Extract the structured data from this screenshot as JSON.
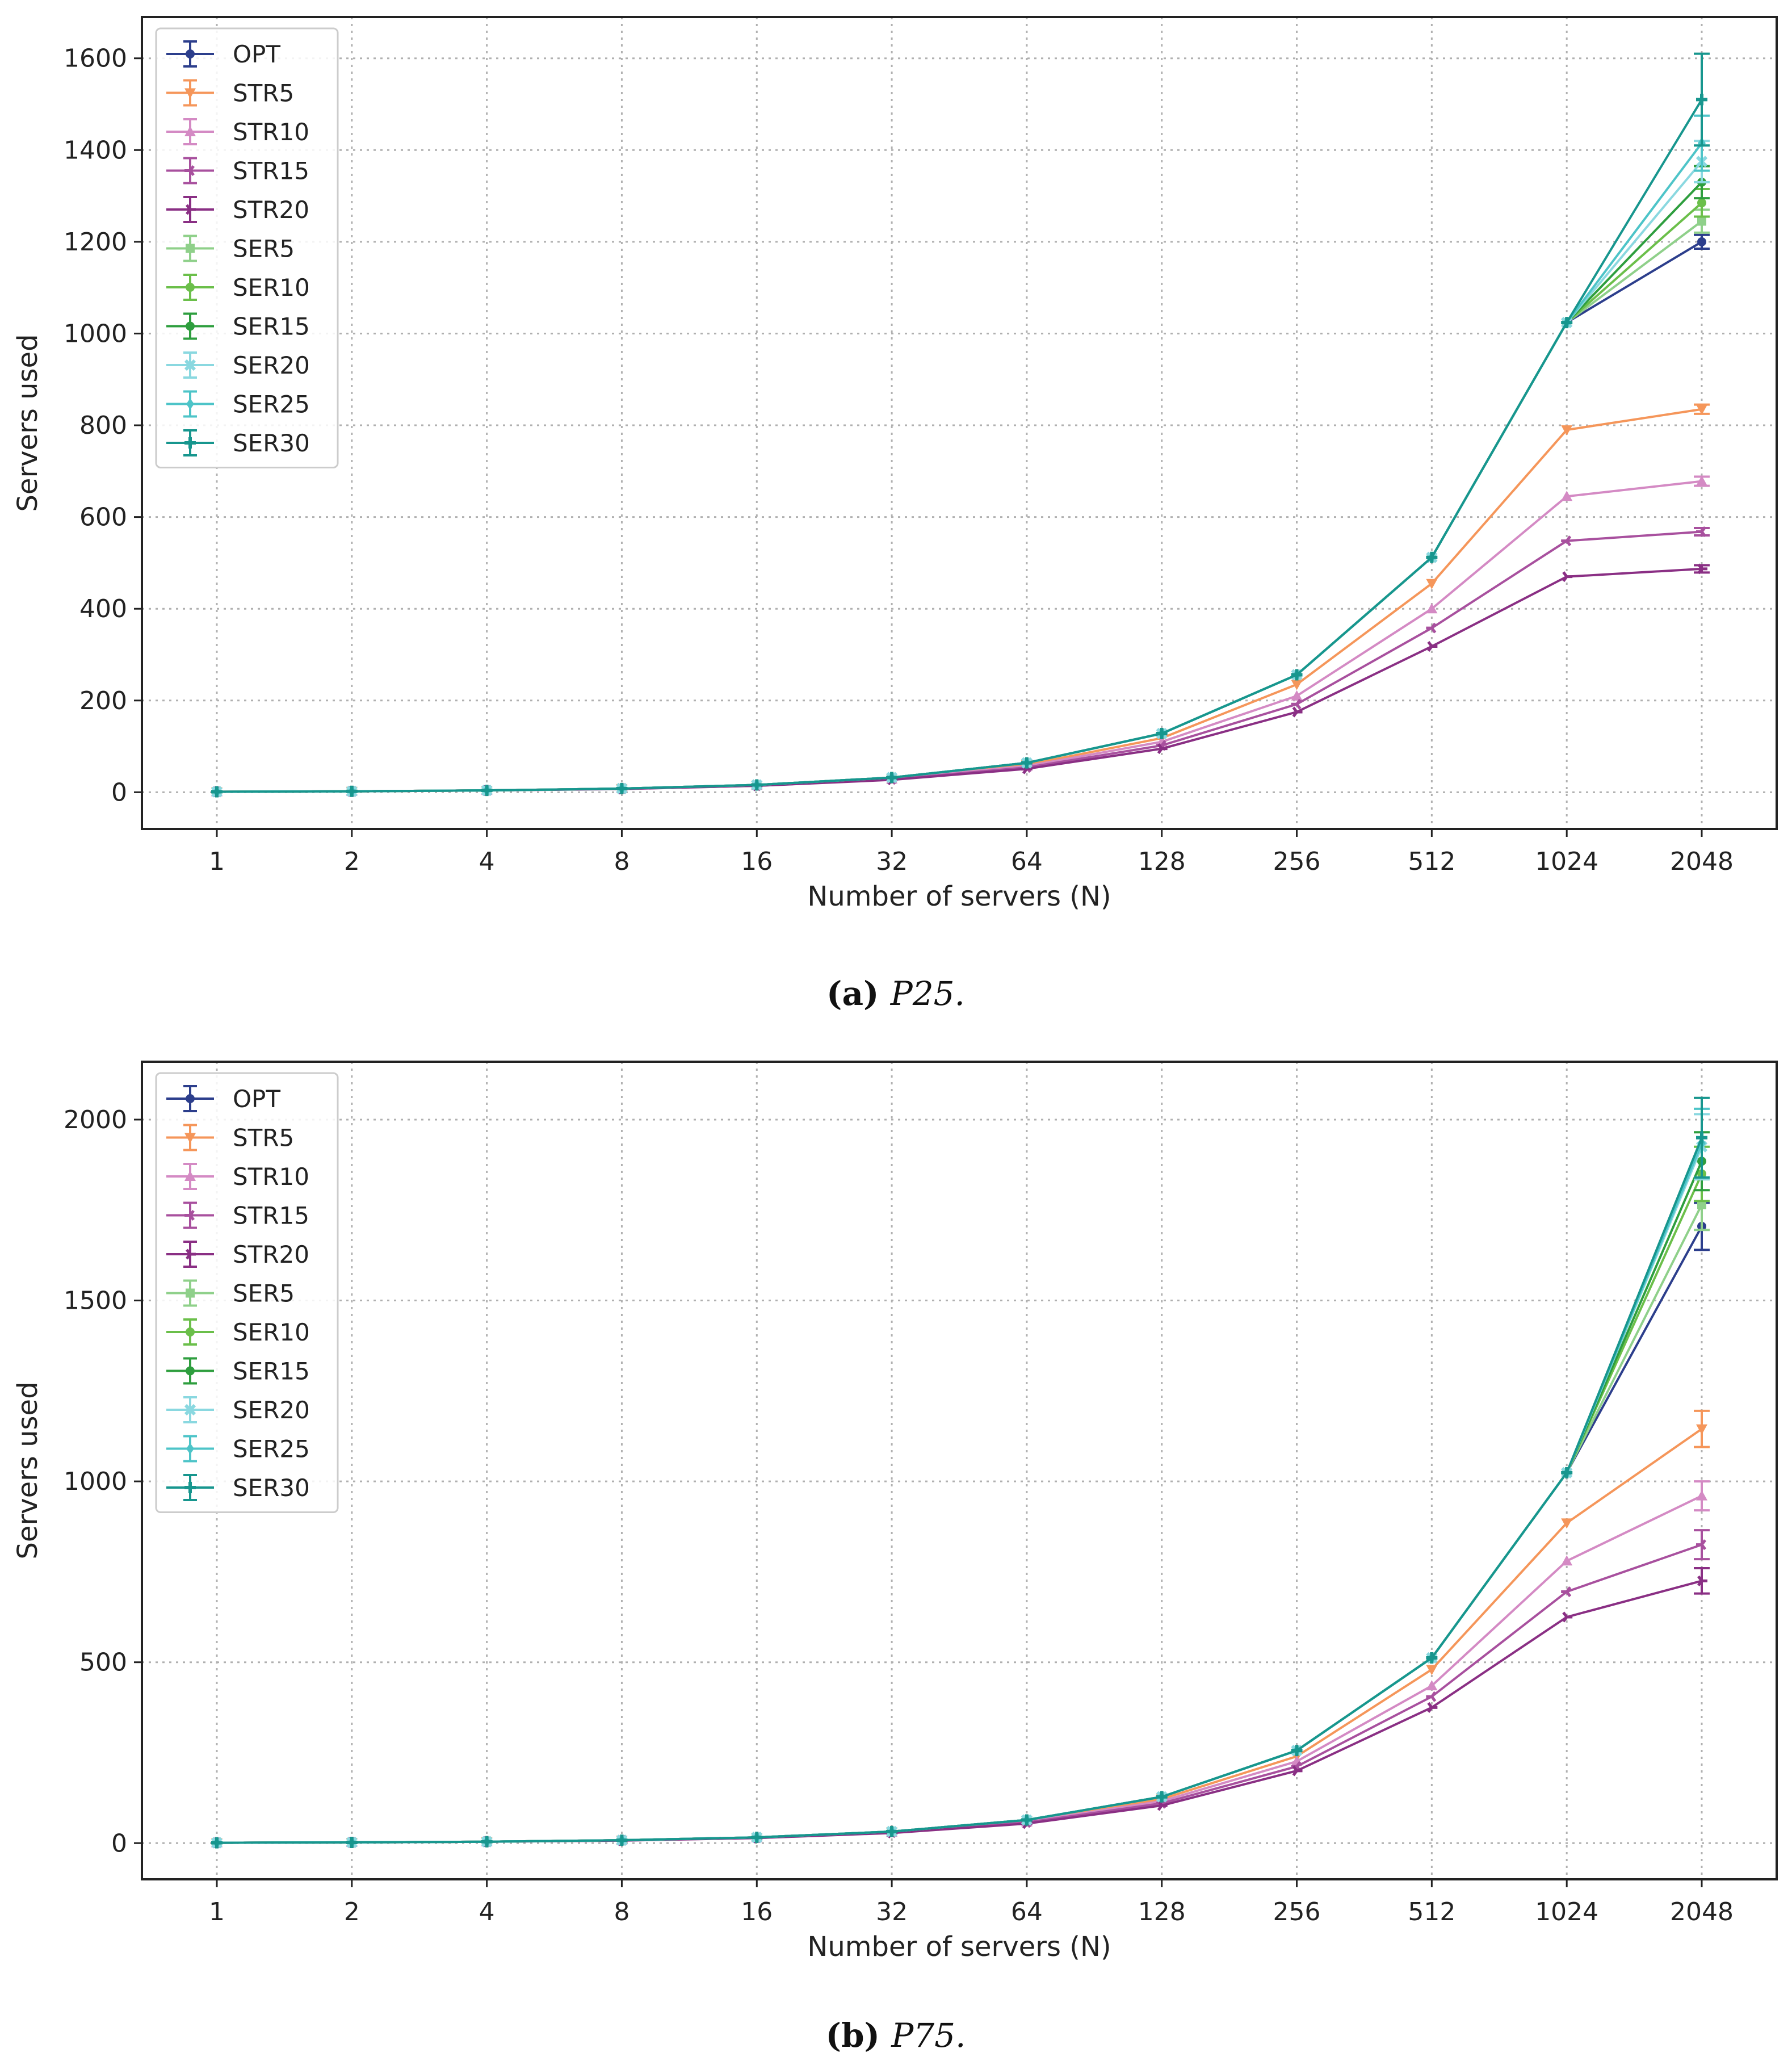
{
  "chart_data": [
    {
      "type": "line",
      "caption_tag": "(a)",
      "caption_text": "P25.",
      "xlabel": "Number of servers (N)",
      "ylabel": "Servers used",
      "categories": [
        "1",
        "2",
        "4",
        "8",
        "16",
        "32",
        "64",
        "128",
        "256",
        "512",
        "1024",
        "2048"
      ],
      "yticks": [
        0,
        200,
        400,
        600,
        800,
        1000,
        1200,
        1400,
        1600
      ],
      "ylim": [
        -80,
        1690
      ],
      "grid": true,
      "legend_position": "top-left",
      "series": [
        {
          "name": "OPT",
          "color": "#2c3e8c",
          "marker": "circle",
          "values": [
            1,
            2,
            4,
            8,
            16,
            32,
            64,
            128,
            256,
            512,
            1024,
            1200
          ],
          "err_last": 15
        },
        {
          "name": "STR5",
          "color": "#f5965a",
          "marker": "triangle-down",
          "values": [
            1,
            2,
            4,
            8,
            15,
            30,
            60,
            118,
            235,
            455,
            790,
            835
          ],
          "err_last": 10
        },
        {
          "name": "STR10",
          "color": "#d48ac4",
          "marker": "triangle-up",
          "values": [
            1,
            2,
            4,
            8,
            15,
            29,
            57,
            110,
            210,
            400,
            645,
            678
          ],
          "err_last": 10
        },
        {
          "name": "STR15",
          "color": "#a8509e",
          "marker": "tri-left",
          "values": [
            1,
            2,
            4,
            8,
            14,
            28,
            54,
            102,
            192,
            358,
            548,
            568
          ],
          "err_last": 8
        },
        {
          "name": "STR20",
          "color": "#8a2f84",
          "marker": "tri-right",
          "values": [
            1,
            2,
            4,
            7,
            14,
            27,
            51,
            95,
            175,
            318,
            470,
            487
          ],
          "err_last": 8
        },
        {
          "name": "SER5",
          "color": "#8fd08a",
          "marker": "square",
          "values": [
            1,
            2,
            4,
            8,
            16,
            32,
            64,
            128,
            256,
            512,
            1024,
            1245
          ],
          "err_last": 25
        },
        {
          "name": "SER10",
          "color": "#6bbf4a",
          "marker": "circle",
          "values": [
            1,
            2,
            4,
            8,
            16,
            32,
            64,
            128,
            256,
            512,
            1024,
            1285
          ],
          "err_last": 30
        },
        {
          "name": "SER15",
          "color": "#2e9e3e",
          "marker": "circle",
          "values": [
            1,
            2,
            4,
            8,
            16,
            32,
            64,
            128,
            256,
            512,
            1024,
            1330
          ],
          "err_last": 35
        },
        {
          "name": "SER20",
          "color": "#8ad8e0",
          "marker": "x",
          "values": [
            1,
            2,
            4,
            8,
            16,
            32,
            64,
            128,
            256,
            512,
            1024,
            1375
          ],
          "err_last": 45
        },
        {
          "name": "SER25",
          "color": "#4dc4c8",
          "marker": "diamond",
          "values": [
            1,
            2,
            4,
            8,
            16,
            32,
            64,
            128,
            256,
            512,
            1024,
            1415
          ],
          "err_last": 60
        },
        {
          "name": "SER30",
          "color": "#17968e",
          "marker": "plus",
          "values": [
            1,
            2,
            4,
            8,
            16,
            32,
            64,
            128,
            256,
            512,
            1024,
            1510
          ],
          "err_last": 100
        }
      ]
    },
    {
      "type": "line",
      "caption_tag": "(b)",
      "caption_text": "P75.",
      "xlabel": "Number of servers (N)",
      "ylabel": "Servers used",
      "categories": [
        "1",
        "2",
        "4",
        "8",
        "16",
        "32",
        "64",
        "128",
        "256",
        "512",
        "1024",
        "2048"
      ],
      "yticks": [
        0,
        500,
        1000,
        1500,
        2000
      ],
      "ylim": [
        -100,
        2160
      ],
      "grid": true,
      "legend_position": "top-left",
      "series": [
        {
          "name": "OPT",
          "color": "#2c3e8c",
          "marker": "circle",
          "values": [
            1,
            2,
            4,
            8,
            16,
            32,
            64,
            128,
            256,
            512,
            1024,
            1705
          ],
          "err_last": 65
        },
        {
          "name": "STR5",
          "color": "#f5965a",
          "marker": "triangle-down",
          "values": [
            1,
            2,
            4,
            8,
            16,
            31,
            62,
            122,
            240,
            480,
            885,
            1145
          ],
          "err_last": 50
        },
        {
          "name": "STR10",
          "color": "#d48ac4",
          "marker": "triangle-up",
          "values": [
            1,
            2,
            4,
            8,
            15,
            30,
            59,
            116,
            226,
            435,
            780,
            960
          ],
          "err_last": 40
        },
        {
          "name": "STR15",
          "color": "#a8509e",
          "marker": "tri-left",
          "values": [
            1,
            2,
            4,
            8,
            15,
            29,
            57,
            110,
            212,
            405,
            695,
            825
          ],
          "err_last": 40
        },
        {
          "name": "STR20",
          "color": "#8a2f84",
          "marker": "tri-right",
          "values": [
            1,
            2,
            4,
            7,
            14,
            28,
            54,
            104,
            200,
            375,
            625,
            725
          ],
          "err_last": 35
        },
        {
          "name": "SER5",
          "color": "#8fd08a",
          "marker": "square",
          "values": [
            1,
            2,
            4,
            8,
            16,
            32,
            64,
            128,
            256,
            512,
            1024,
            1765
          ],
          "err_last": 70
        },
        {
          "name": "SER10",
          "color": "#6bbf4a",
          "marker": "circle",
          "values": [
            1,
            2,
            4,
            8,
            16,
            32,
            64,
            128,
            256,
            512,
            1024,
            1850
          ],
          "err_last": 75
        },
        {
          "name": "SER15",
          "color": "#2e9e3e",
          "marker": "circle",
          "values": [
            1,
            2,
            4,
            8,
            16,
            32,
            64,
            128,
            256,
            512,
            1024,
            1885
          ],
          "err_last": 80
        },
        {
          "name": "SER20",
          "color": "#8ad8e0",
          "marker": "x",
          "values": [
            1,
            2,
            4,
            8,
            16,
            32,
            64,
            128,
            256,
            512,
            1024,
            1925
          ],
          "err_last": 90
        },
        {
          "name": "SER25",
          "color": "#4dc4c8",
          "marker": "diamond",
          "values": [
            1,
            2,
            4,
            8,
            16,
            32,
            64,
            128,
            256,
            512,
            1024,
            1935
          ],
          "err_last": 95
        },
        {
          "name": "SER30",
          "color": "#17968e",
          "marker": "plus",
          "values": [
            1,
            2,
            4,
            8,
            16,
            32,
            64,
            128,
            256,
            512,
            1024,
            1950
          ],
          "err_last": 110
        }
      ]
    }
  ]
}
